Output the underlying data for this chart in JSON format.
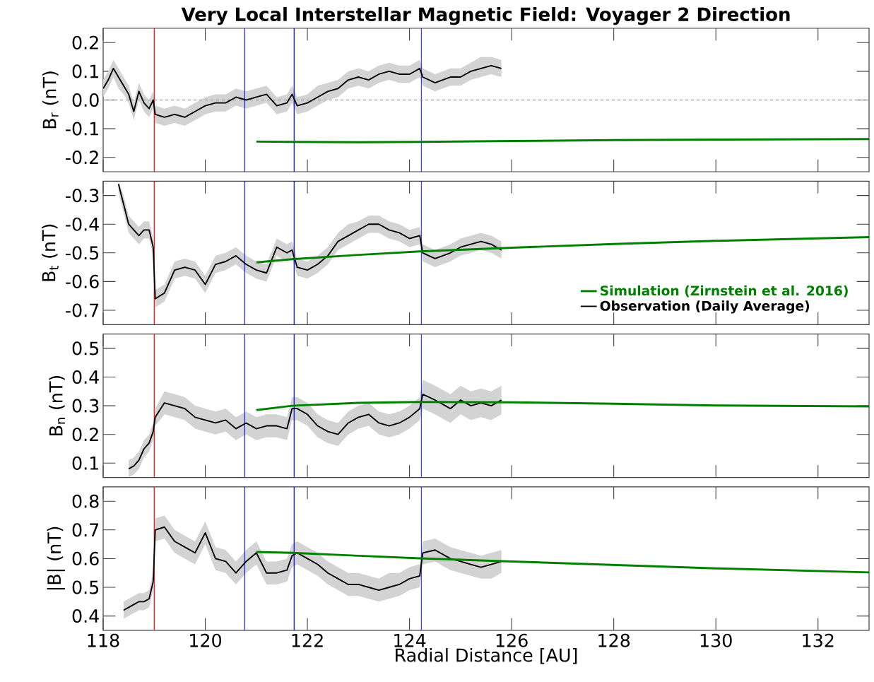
{
  "chart_data": [
    {
      "type": "line",
      "title": "Very Local Interstellar Magnetic Field: Voyager 2 Direction",
      "ylabel": "B$_{r}$ (nT)",
      "xlim": [
        118,
        133
      ],
      "ylim": [
        -0.25,
        0.25
      ],
      "xticks": [
        118,
        120,
        122,
        124,
        126,
        128,
        130,
        132
      ],
      "yticks": [
        -0.2,
        -0.1,
        {
          "value": 0,
          "label": "0.0"
        },
        0.1,
        0.2
      ],
      "tick_labels": "y",
      "ref_lines": [
        {
          "axis": "x",
          "value": 119.0,
          "color": "#ff0000"
        },
        {
          "axis": "x",
          "value": 120.77,
          "color": "#0000ff"
        },
        {
          "axis": "x",
          "value": 121.74,
          "color": "#0000ff"
        },
        {
          "axis": "x",
          "value": 124.23,
          "color": "#0000ff"
        },
        {
          "axis": "y",
          "value": 0,
          "color": "#808080",
          "line_style": "dashed"
        }
      ],
      "series": [
        {
          "color": "#000000",
          "x": [
            118.0,
            118.1,
            118.2,
            118.3,
            118.4,
            118.5,
            118.6,
            118.7,
            118.8,
            118.9,
            118.98,
            119.02,
            119.2,
            119.4,
            119.6,
            119.8,
            120.0,
            120.2,
            120.4,
            120.6,
            120.8,
            121.0,
            121.2,
            121.4,
            121.6,
            121.7,
            121.8,
            122.0,
            122.2,
            122.4,
            122.6,
            122.8,
            123.0,
            123.2,
            123.4,
            123.6,
            123.8,
            124.0,
            124.2,
            124.26,
            124.5,
            124.8,
            125.0,
            125.2,
            125.4,
            125.6,
            125.8
          ],
          "values": [
            0.04,
            0.07,
            0.11,
            0.08,
            0.05,
            0.02,
            -0.04,
            0.03,
            -0.01,
            -0.03,
            0.0,
            -0.05,
            -0.06,
            -0.05,
            -0.06,
            -0.04,
            -0.02,
            -0.01,
            -0.01,
            0.01,
            0.0,
            0.01,
            0.02,
            -0.02,
            -0.01,
            0.02,
            -0.02,
            -0.01,
            0.01,
            0.03,
            0.04,
            0.07,
            0.08,
            0.07,
            0.09,
            0.1,
            0.09,
            0.09,
            0.11,
            0.08,
            0.06,
            0.08,
            0.08,
            0.1,
            0.11,
            0.12,
            0.11
          ],
          "lower": [
            0.01,
            0.04,
            0.08,
            0.04,
            0.02,
            -0.01,
            -0.07,
            0.0,
            -0.04,
            -0.06,
            -0.03,
            -0.08,
            -0.09,
            -0.08,
            -0.09,
            -0.07,
            -0.05,
            -0.04,
            -0.04,
            -0.02,
            -0.03,
            -0.02,
            -0.01,
            -0.05,
            -0.04,
            -0.01,
            -0.05,
            -0.04,
            -0.02,
            0.0,
            0.01,
            0.04,
            0.05,
            0.04,
            0.06,
            0.07,
            0.06,
            0.06,
            0.08,
            0.05,
            0.03,
            0.05,
            0.05,
            0.07,
            0.08,
            0.09,
            0.08
          ],
          "upper": [
            0.07,
            0.1,
            0.14,
            0.11,
            0.08,
            0.05,
            -0.01,
            0.06,
            0.02,
            0.0,
            0.03,
            -0.02,
            -0.03,
            -0.02,
            -0.03,
            -0.01,
            0.01,
            0.02,
            0.02,
            0.04,
            0.03,
            0.04,
            0.05,
            0.01,
            0.02,
            0.05,
            0.01,
            0.02,
            0.05,
            0.06,
            0.07,
            0.1,
            0.11,
            0.1,
            0.12,
            0.13,
            0.12,
            0.12,
            0.14,
            0.11,
            0.09,
            0.11,
            0.11,
            0.13,
            0.15,
            0.15,
            0.14
          ]
        },
        {
          "color": "#008000",
          "x": [
            121.0,
            121.7,
            123.0,
            124.2,
            126.0,
            128.0,
            130.0,
            133.0
          ],
          "values": [
            -0.145,
            -0.146,
            -0.147,
            -0.146,
            -0.143,
            -0.14,
            -0.138,
            -0.136
          ]
        }
      ]
    },
    {
      "type": "line",
      "ylabel": "B$_{t}$ (nT)",
      "xlim": [
        118,
        133
      ],
      "ylim": [
        -0.75,
        -0.25
      ],
      "xticks": [
        118,
        120,
        122,
        124,
        126,
        128,
        130,
        132
      ],
      "yticks": [
        -0.7,
        -0.6,
        -0.5,
        -0.4,
        -0.3
      ],
      "tick_labels": "y",
      "legend": "bottom right",
      "ref_lines": [
        {
          "axis": "x",
          "value": 119.0,
          "color": "#ff0000"
        },
        {
          "axis": "x",
          "value": 120.77,
          "color": "#0000ff"
        },
        {
          "axis": "x",
          "value": 121.74,
          "color": "#0000ff"
        },
        {
          "axis": "x",
          "value": 124.23,
          "color": "#0000ff"
        }
      ],
      "series": [
        {
          "name": "Observation (Daily Average)",
          "color": "#000000",
          "x": [
            118.3,
            118.4,
            118.5,
            118.6,
            118.7,
            118.8,
            118.9,
            118.98,
            119.02,
            119.2,
            119.4,
            119.6,
            119.8,
            120.0,
            120.2,
            120.4,
            120.6,
            120.8,
            121.0,
            121.2,
            121.4,
            121.6,
            121.7,
            121.8,
            122.0,
            122.2,
            122.4,
            122.6,
            122.8,
            123.0,
            123.2,
            123.4,
            123.6,
            123.8,
            124.0,
            124.2,
            124.26,
            124.5,
            124.8,
            125.0,
            125.2,
            125.4,
            125.6,
            125.8
          ],
          "values": [
            -0.26,
            -0.33,
            -0.4,
            -0.42,
            -0.44,
            -0.42,
            -0.42,
            -0.48,
            -0.66,
            -0.64,
            -0.56,
            -0.55,
            -0.56,
            -0.61,
            -0.54,
            -0.53,
            -0.51,
            -0.54,
            -0.56,
            -0.57,
            -0.48,
            -0.5,
            -0.49,
            -0.55,
            -0.56,
            -0.54,
            -0.51,
            -0.46,
            -0.44,
            -0.42,
            -0.4,
            -0.4,
            -0.42,
            -0.43,
            -0.45,
            -0.44,
            -0.5,
            -0.52,
            -0.5,
            -0.48,
            -0.47,
            -0.46,
            -0.47,
            -0.49
          ],
          "lower": [
            -0.29,
            -0.36,
            -0.43,
            -0.45,
            -0.47,
            -0.45,
            -0.45,
            -0.51,
            -0.69,
            -0.67,
            -0.59,
            -0.58,
            -0.59,
            -0.64,
            -0.57,
            -0.56,
            -0.54,
            -0.57,
            -0.59,
            -0.6,
            -0.51,
            -0.53,
            -0.52,
            -0.58,
            -0.59,
            -0.57,
            -0.54,
            -0.49,
            -0.47,
            -0.45,
            -0.43,
            -0.43,
            -0.45,
            -0.46,
            -0.48,
            -0.47,
            -0.53,
            -0.55,
            -0.53,
            -0.51,
            -0.5,
            -0.49,
            -0.5,
            -0.52
          ],
          "upper": [
            -0.25,
            -0.3,
            -0.37,
            -0.39,
            -0.41,
            -0.39,
            -0.39,
            -0.45,
            -0.63,
            -0.61,
            -0.53,
            -0.52,
            -0.53,
            -0.58,
            -0.51,
            -0.5,
            -0.48,
            -0.51,
            -0.53,
            -0.54,
            -0.45,
            -0.47,
            -0.46,
            -0.52,
            -0.53,
            -0.51,
            -0.48,
            -0.43,
            -0.4,
            -0.39,
            -0.37,
            -0.37,
            -0.39,
            -0.4,
            -0.42,
            -0.41,
            -0.47,
            -0.49,
            -0.47,
            -0.45,
            -0.44,
            -0.43,
            -0.44,
            -0.46
          ]
        },
        {
          "name": "Simulation (Zirnstein et al. 2016)",
          "color": "#008000",
          "x": [
            121.0,
            121.7,
            123.0,
            124.2,
            126.0,
            128.0,
            130.0,
            133.0
          ],
          "values": [
            -0.533,
            -0.522,
            -0.507,
            -0.495,
            -0.482,
            -0.469,
            -0.458,
            -0.445
          ]
        }
      ]
    },
    {
      "type": "line",
      "ylabel": "B$_{n}$ (nT)",
      "xlim": [
        118,
        133
      ],
      "ylim": [
        0.05,
        0.55
      ],
      "xticks": [
        118,
        120,
        122,
        124,
        126,
        128,
        130,
        132
      ],
      "yticks": [
        0.1,
        0.2,
        0.3,
        0.4,
        0.5
      ],
      "tick_labels": "y",
      "ref_lines": [
        {
          "axis": "x",
          "value": 119.0,
          "color": "#ff0000"
        },
        {
          "axis": "x",
          "value": 120.77,
          "color": "#0000ff"
        },
        {
          "axis": "x",
          "value": 121.74,
          "color": "#0000ff"
        },
        {
          "axis": "x",
          "value": 124.23,
          "color": "#0000ff"
        }
      ],
      "series": [
        {
          "color": "#000000",
          "x": [
            118.5,
            118.6,
            118.7,
            118.8,
            118.9,
            118.98,
            119.02,
            119.2,
            119.4,
            119.6,
            119.8,
            120.0,
            120.2,
            120.4,
            120.6,
            120.8,
            121.0,
            121.2,
            121.4,
            121.6,
            121.7,
            121.8,
            122.0,
            122.2,
            122.4,
            122.6,
            122.8,
            123.0,
            123.2,
            123.4,
            123.6,
            123.8,
            124.0,
            124.2,
            124.26,
            124.5,
            124.8,
            125.0,
            125.2,
            125.4,
            125.6,
            125.8
          ],
          "values": [
            0.08,
            0.09,
            0.11,
            0.15,
            0.17,
            0.21,
            0.26,
            0.31,
            0.3,
            0.29,
            0.26,
            0.25,
            0.24,
            0.25,
            0.22,
            0.24,
            0.22,
            0.23,
            0.23,
            0.22,
            0.29,
            0.29,
            0.27,
            0.23,
            0.21,
            0.2,
            0.24,
            0.26,
            0.27,
            0.24,
            0.23,
            0.24,
            0.26,
            0.29,
            0.34,
            0.32,
            0.29,
            0.32,
            0.3,
            0.31,
            0.3,
            0.32
          ],
          "lower": [
            0.05,
            0.06,
            0.08,
            0.12,
            0.14,
            0.18,
            0.23,
            0.27,
            0.26,
            0.25,
            0.22,
            0.21,
            0.2,
            0.21,
            0.18,
            0.2,
            0.18,
            0.19,
            0.19,
            0.18,
            0.25,
            0.25,
            0.23,
            0.19,
            0.17,
            0.16,
            0.2,
            0.22,
            0.23,
            0.2,
            0.19,
            0.2,
            0.22,
            0.25,
            0.29,
            0.27,
            0.24,
            0.27,
            0.25,
            0.26,
            0.25,
            0.27
          ],
          "upper": [
            0.11,
            0.12,
            0.14,
            0.18,
            0.2,
            0.24,
            0.29,
            0.35,
            0.34,
            0.33,
            0.3,
            0.29,
            0.28,
            0.29,
            0.26,
            0.28,
            0.26,
            0.27,
            0.27,
            0.26,
            0.33,
            0.33,
            0.31,
            0.27,
            0.25,
            0.24,
            0.28,
            0.3,
            0.31,
            0.28,
            0.27,
            0.28,
            0.3,
            0.33,
            0.39,
            0.37,
            0.34,
            0.37,
            0.35,
            0.36,
            0.35,
            0.37
          ]
        },
        {
          "color": "#008000",
          "x": [
            121.0,
            121.7,
            123.0,
            124.2,
            126.0,
            128.0,
            130.0,
            133.0
          ],
          "values": [
            0.285,
            0.3,
            0.31,
            0.313,
            0.312,
            0.307,
            0.301,
            0.298
          ]
        }
      ]
    },
    {
      "type": "line",
      "ylabel": "|B| (nT)",
      "xlabel": "Radial Distance [AU]",
      "xlim": [
        118,
        133
      ],
      "ylim": [
        0.35,
        0.85
      ],
      "xticks": [
        118,
        120,
        122,
        124,
        126,
        128,
        130,
        132
      ],
      "yticks": [
        0.4,
        0.5,
        0.6,
        0.7,
        0.8
      ],
      "ref_lines": [
        {
          "axis": "x",
          "value": 119.0,
          "color": "#ff0000"
        },
        {
          "axis": "x",
          "value": 120.77,
          "color": "#0000ff"
        },
        {
          "axis": "x",
          "value": 121.74,
          "color": "#0000ff"
        },
        {
          "axis": "x",
          "value": 124.23,
          "color": "#0000ff"
        }
      ],
      "series": [
        {
          "color": "#000000",
          "x": [
            118.4,
            118.5,
            118.6,
            118.7,
            118.8,
            118.9,
            118.98,
            119.02,
            119.2,
            119.4,
            119.6,
            119.8,
            120.0,
            120.2,
            120.4,
            120.6,
            120.8,
            121.0,
            121.2,
            121.4,
            121.6,
            121.7,
            121.8,
            122.0,
            122.2,
            122.4,
            122.6,
            122.8,
            123.0,
            123.2,
            123.4,
            123.6,
            123.8,
            124.0,
            124.2,
            124.26,
            124.5,
            124.8,
            125.0,
            125.2,
            125.4,
            125.6,
            125.8
          ],
          "values": [
            0.42,
            0.43,
            0.44,
            0.45,
            0.45,
            0.46,
            0.52,
            0.7,
            0.71,
            0.66,
            0.64,
            0.62,
            0.69,
            0.6,
            0.59,
            0.55,
            0.59,
            0.62,
            0.55,
            0.55,
            0.56,
            0.61,
            0.62,
            0.6,
            0.58,
            0.55,
            0.53,
            0.51,
            0.51,
            0.5,
            0.49,
            0.5,
            0.51,
            0.53,
            0.54,
            0.62,
            0.63,
            0.6,
            0.59,
            0.58,
            0.57,
            0.58,
            0.59
          ],
          "lower": [
            0.39,
            0.4,
            0.41,
            0.42,
            0.42,
            0.43,
            0.49,
            0.66,
            0.67,
            0.62,
            0.6,
            0.58,
            0.65,
            0.56,
            0.55,
            0.51,
            0.55,
            0.58,
            0.51,
            0.51,
            0.52,
            0.57,
            0.58,
            0.56,
            0.54,
            0.51,
            0.49,
            0.47,
            0.47,
            0.46,
            0.45,
            0.46,
            0.47,
            0.49,
            0.5,
            0.58,
            0.59,
            0.56,
            0.55,
            0.54,
            0.53,
            0.53,
            0.55
          ],
          "upper": [
            0.45,
            0.46,
            0.47,
            0.48,
            0.48,
            0.49,
            0.55,
            0.74,
            0.75,
            0.7,
            0.68,
            0.66,
            0.73,
            0.64,
            0.63,
            0.59,
            0.63,
            0.66,
            0.59,
            0.59,
            0.6,
            0.65,
            0.66,
            0.64,
            0.62,
            0.59,
            0.57,
            0.55,
            0.55,
            0.54,
            0.53,
            0.55,
            0.55,
            0.57,
            0.58,
            0.66,
            0.67,
            0.64,
            0.63,
            0.62,
            0.61,
            0.62,
            0.63
          ]
        },
        {
          "color": "#008000",
          "x": [
            121.0,
            121.7,
            123.0,
            124.2,
            126.0,
            128.0,
            130.0,
            133.0
          ],
          "values": [
            0.623,
            0.62,
            0.61,
            0.601,
            0.59,
            0.578,
            0.566,
            0.552
          ]
        }
      ]
    }
  ]
}
